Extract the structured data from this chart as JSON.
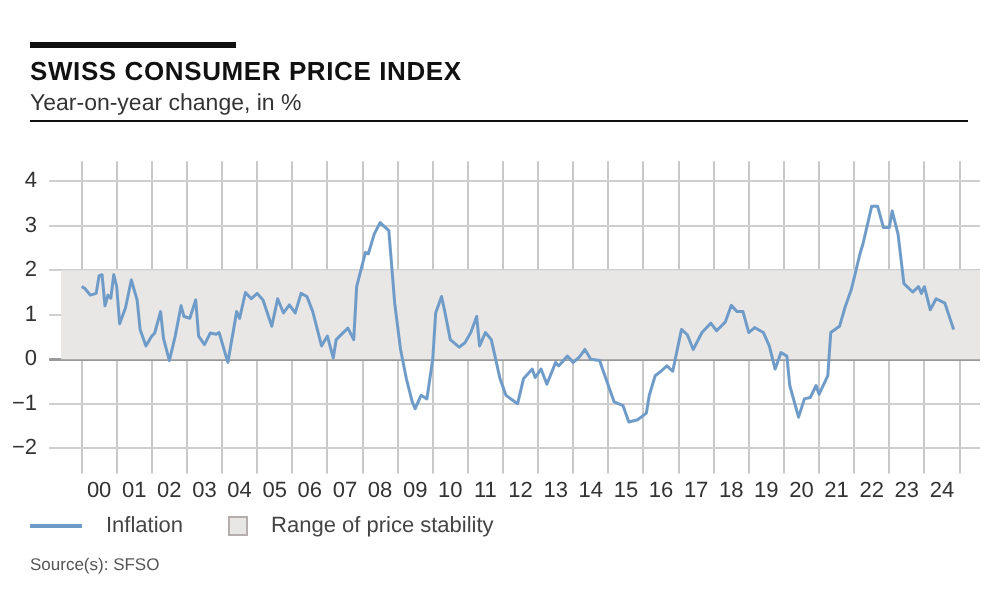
{
  "chart_data": {
    "type": "line",
    "title": "SWISS CONSUMER PRICE INDEX",
    "subtitle": "Year-on-year change, in %",
    "annotations": [
      "Source(s): SFSO"
    ],
    "series": [
      {
        "name": "Inflation",
        "color": "#6f9bc8",
        "x": [
          "2000-01",
          "2000-02",
          "2000-04",
          "2000-06",
          "2000-07",
          "2000-08",
          "2000-09",
          "2000-10",
          "2000-11",
          "2000-12",
          "2001-01",
          "2001-02",
          "2001-04",
          "2001-06",
          "2001-08",
          "2001-09",
          "2001-11",
          "2002-01",
          "2002-02",
          "2002-04",
          "2002-05",
          "2002-07",
          "2002-09",
          "2002-11",
          "2002-12",
          "2003-02",
          "2003-04",
          "2003-05",
          "2003-07",
          "2003-09",
          "2003-11",
          "2003-12",
          "2004-02",
          "2004-03",
          "2004-06",
          "2004-07",
          "2004-09",
          "2004-11",
          "2005-01",
          "2005-03",
          "2005-06",
          "2005-08",
          "2005-10",
          "2005-12",
          "2006-02",
          "2006-04",
          "2006-06",
          "2006-08",
          "2006-11",
          "2007-01",
          "2007-03",
          "2007-04",
          "2007-08",
          "2007-10",
          "2007-11",
          "2008-02",
          "2008-03",
          "2008-05",
          "2008-07",
          "2008-10",
          "2008-12",
          "2009-02",
          "2009-04",
          "2009-06",
          "2009-07",
          "2009-09",
          "2009-11",
          "2010-01",
          "2010-02",
          "2010-04",
          "2010-05",
          "2010-07",
          "2010-10",
          "2010-12",
          "2011-02",
          "2011-04",
          "2011-05",
          "2011-07",
          "2011-09",
          "2011-10",
          "2011-12",
          "2012-02",
          "2012-06",
          "2012-08",
          "2012-11",
          "2012-12",
          "2013-02",
          "2013-04",
          "2013-07",
          "2013-08",
          "2013-11",
          "2014-01",
          "2014-03",
          "2014-05",
          "2014-07",
          "2014-10",
          "2015-01",
          "2015-03",
          "2015-06",
          "2015-08",
          "2015-11",
          "2016-02",
          "2016-03",
          "2016-05",
          "2016-07",
          "2016-09",
          "2016-11",
          "2017-02",
          "2017-04",
          "2017-06",
          "2017-09",
          "2017-12",
          "2018-02",
          "2018-05",
          "2018-07",
          "2018-09",
          "2018-11",
          "2019-01",
          "2019-03",
          "2019-06",
          "2019-08",
          "2019-10",
          "2019-12",
          "2020-02",
          "2020-03",
          "2020-06",
          "2020-08",
          "2020-10",
          "2020-12",
          "2021-01",
          "2021-04",
          "2021-05",
          "2021-08",
          "2021-10",
          "2021-12",
          "2022-03",
          "2022-04",
          "2022-07",
          "2022-09",
          "2022-11",
          "2023-01",
          "2023-02",
          "2023-04",
          "2023-06",
          "2023-09",
          "2023-11",
          "2023-12",
          "2024-01",
          "2024-03",
          "2024-05",
          "2024-08",
          "2024-11"
        ],
        "values": [
          1.63,
          1.6,
          1.44,
          1.48,
          1.88,
          1.9,
          1.2,
          1.44,
          1.37,
          1.9,
          1.63,
          0.8,
          1.15,
          1.78,
          1.33,
          0.67,
          0.3,
          0.52,
          0.59,
          1.07,
          0.47,
          -0.03,
          0.52,
          1.2,
          0.96,
          0.92,
          1.33,
          0.52,
          0.33,
          0.59,
          0.56,
          0.6,
          0.15,
          -0.07,
          1.07,
          0.92,
          1.5,
          1.36,
          1.48,
          1.33,
          0.74,
          1.36,
          1.04,
          1.22,
          1.04,
          1.48,
          1.41,
          1.07,
          0.3,
          0.52,
          0.03,
          0.44,
          0.7,
          0.44,
          1.63,
          2.4,
          2.37,
          2.81,
          3.07,
          2.89,
          1.26,
          0.22,
          -0.44,
          -0.96,
          -1.11,
          -0.81,
          -0.89,
          0,
          1.04,
          1.41,
          1.11,
          0.44,
          0.27,
          0.37,
          0.6,
          0.96,
          0.3,
          0.6,
          0.44,
          0.15,
          -0.44,
          -0.81,
          -1.0,
          -0.44,
          -0.22,
          -0.41,
          -0.22,
          -0.56,
          -0.07,
          -0.15,
          0.07,
          -0.07,
          0.04,
          0.22,
          0.0,
          -0.03,
          -0.59,
          -0.96,
          -1.04,
          -1.41,
          -1.36,
          -1.21,
          -0.81,
          -0.37,
          -0.27,
          -0.15,
          -0.27,
          0.67,
          0.55,
          0.22,
          0.6,
          0.81,
          0.64,
          0.84,
          1.21,
          1.07,
          1.07,
          0.6,
          0.71,
          0.6,
          0.3,
          -0.22,
          0.15,
          0.07,
          -0.59,
          -1.3,
          -0.89,
          -0.86,
          -0.59,
          -0.79,
          -0.37,
          0.6,
          0.74,
          1.19,
          1.56,
          2.37,
          2.59,
          3.44,
          3.44,
          2.96,
          2.96,
          3.33,
          2.81,
          1.7,
          1.51,
          1.63,
          1.48,
          1.63,
          1.11,
          1.36,
          1.26,
          0.67
        ]
      }
    ],
    "xlim": [
      "1999-06",
      "2025-08"
    ],
    "xticks": [
      {
        "value": "2000-01",
        "label": null
      },
      {
        "value": "2000-07",
        "label": "00"
      },
      {
        "value": "2001-01",
        "label": null
      },
      {
        "value": "2001-07",
        "label": "01"
      },
      {
        "value": "2002-01",
        "label": null
      },
      {
        "value": "2002-07",
        "label": "02"
      },
      {
        "value": "2003-01",
        "label": null
      },
      {
        "value": "2003-07",
        "label": "03"
      },
      {
        "value": "2004-01",
        "label": null
      },
      {
        "value": "2004-07",
        "label": "04"
      },
      {
        "value": "2005-01",
        "label": null
      },
      {
        "value": "2005-07",
        "label": "05"
      },
      {
        "value": "2006-01",
        "label": null
      },
      {
        "value": "2006-07",
        "label": "06"
      },
      {
        "value": "2007-01",
        "label": null
      },
      {
        "value": "2007-07",
        "label": "07"
      },
      {
        "value": "2008-01",
        "label": null
      },
      {
        "value": "2008-07",
        "label": "08"
      },
      {
        "value": "2009-01",
        "label": null
      },
      {
        "value": "2009-07",
        "label": "09"
      },
      {
        "value": "2010-01",
        "label": null
      },
      {
        "value": "2010-07",
        "label": "10"
      },
      {
        "value": "2011-01",
        "label": null
      },
      {
        "value": "2011-07",
        "label": "11"
      },
      {
        "value": "2012-01",
        "label": null
      },
      {
        "value": "2012-07",
        "label": "12"
      },
      {
        "value": "2013-01",
        "label": null
      },
      {
        "value": "2013-07",
        "label": "13"
      },
      {
        "value": "2014-01",
        "label": null
      },
      {
        "value": "2014-07",
        "label": "14"
      },
      {
        "value": "2015-01",
        "label": null
      },
      {
        "value": "2015-07",
        "label": "15"
      },
      {
        "value": "2016-01",
        "label": null
      },
      {
        "value": "2016-07",
        "label": "16"
      },
      {
        "value": "2017-01",
        "label": null
      },
      {
        "value": "2017-07",
        "label": "17"
      },
      {
        "value": "2018-01",
        "label": null
      },
      {
        "value": "2018-07",
        "label": "18"
      },
      {
        "value": "2019-01",
        "label": null
      },
      {
        "value": "2019-07",
        "label": "19"
      },
      {
        "value": "2020-01",
        "label": null
      },
      {
        "value": "2020-07",
        "label": "20"
      },
      {
        "value": "2021-01",
        "label": null
      },
      {
        "value": "2021-07",
        "label": "21"
      },
      {
        "value": "2022-01",
        "label": null
      },
      {
        "value": "2022-07",
        "label": "22"
      },
      {
        "value": "2023-01",
        "label": null
      },
      {
        "value": "2023-07",
        "label": "23"
      },
      {
        "value": "2024-01",
        "label": null
      },
      {
        "value": "2024-07",
        "label": "24"
      },
      {
        "value": "2025-01",
        "label": null
      }
    ],
    "ylim": [
      -2.3,
      4.45
    ],
    "yticks": [
      {
        "value": -2,
        "label": "−2"
      },
      {
        "value": -1,
        "label": "−1"
      },
      {
        "value": 0,
        "label": "0"
      },
      {
        "value": 1,
        "label": "1"
      },
      {
        "value": 2,
        "label": "2"
      },
      {
        "value": 3,
        "label": "3"
      },
      {
        "value": 4,
        "label": "4"
      }
    ],
    "bands": [
      {
        "axis": "y",
        "from": 0,
        "to": 2,
        "label": "Range of price stability",
        "color": "#e9e7e6"
      }
    ],
    "grid": true,
    "legend": "bottom",
    "marker": "none",
    "line_style": "solid"
  }
}
